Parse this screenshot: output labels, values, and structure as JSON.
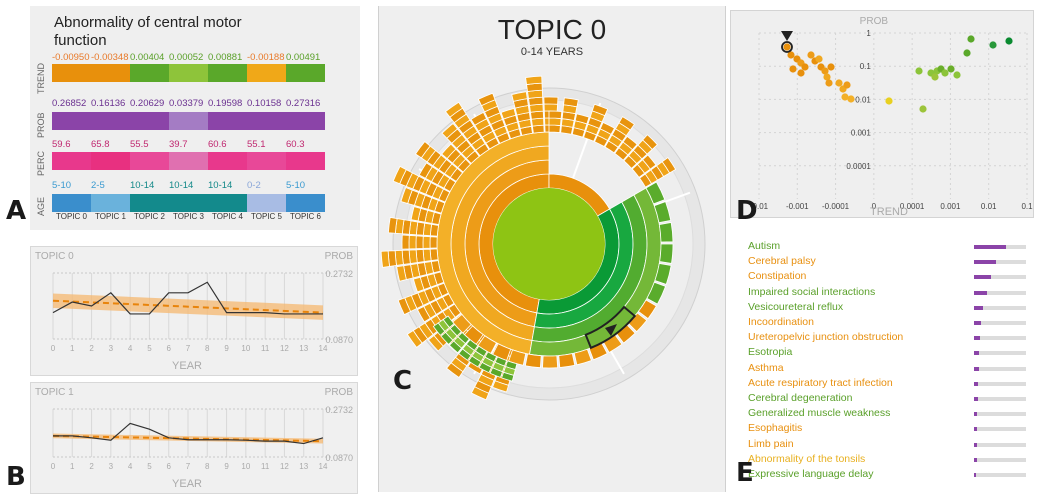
{
  "panel_a": {
    "title": "Abnormality of central motor function",
    "row_labels": [
      "TREND",
      "PROB",
      "PERC",
      "AGE"
    ],
    "trend": {
      "values": [
        "-0.00950",
        "-0.00348",
        "0.00404",
        "0.00052",
        "0.00881",
        "-0.00188",
        "0.00491"
      ],
      "text_colors": [
        "#e87a2a",
        "#e87a2a",
        "#5aa02a",
        "#5aa02a",
        "#5aa02a",
        "#e87a2a",
        "#5aa02a"
      ],
      "cell_colors": [
        "#e8900c",
        "#e8900c",
        "#5aa82a",
        "#8ec43a",
        "#5aa82a",
        "#f0a818",
        "#5aa82a"
      ]
    },
    "prob": {
      "values": [
        "0.26852",
        "0.16136",
        "0.20629",
        "0.03379",
        "0.19598",
        "0.10158",
        "0.27316"
      ],
      "cell_colors": [
        "#8b44a8",
        "#8b44a8",
        "#8b44a8",
        "#a47cc4",
        "#8b44a8",
        "#8b44a8",
        "#8b44a8"
      ]
    },
    "perc": {
      "values": [
        "59.6",
        "65.8",
        "55.5",
        "39.7",
        "60.6",
        "55.1",
        "60.3"
      ],
      "cell_colors": [
        "#e8388c",
        "#e83080",
        "#e84898",
        "#e070b0",
        "#e8388c",
        "#e84898",
        "#e8388c"
      ]
    },
    "age": {
      "values": [
        "5-10",
        "2-5",
        "10-14",
        "10-14",
        "10-14",
        "0-2",
        "5-10"
      ],
      "text_colors": [
        "#3a9ad0",
        "#3a9ad0",
        "#138888",
        "#138888",
        "#138888",
        "#8aa6d8",
        "#3a9ad0"
      ],
      "cell_colors": [
        "#3a8ecc",
        "#6ab2dc",
        "#138a8c",
        "#138a8c",
        "#138a8c",
        "#a8bce4",
        "#3a8ecc"
      ]
    },
    "topics": [
      "TOPIC 0",
      "TOPIC 1",
      "TOPIC 2",
      "TOPIC 3",
      "TOPIC 4",
      "TOPIC 5",
      "TOPIC 6"
    ]
  },
  "letters": {
    "a": "A",
    "b": "B",
    "c": "C",
    "d": "D",
    "e": "E"
  },
  "panel_b": [
    {
      "topic": "TOPIC 0",
      "prob_label": "PROB",
      "y_max": "0.2732",
      "y_min": "0.0870",
      "x_label": "YEAR",
      "x_ticks": [
        "0",
        "1",
        "2",
        "3",
        "4",
        "5",
        "6",
        "7",
        "8",
        "9",
        "10",
        "11",
        "12",
        "13",
        "14"
      ],
      "series": [
        0.4,
        0.56,
        0.5,
        0.7,
        0.38,
        0.38,
        0.7,
        0.7,
        0.86,
        0.4,
        0.4,
        0.4,
        0.38,
        0.38,
        0.38
      ],
      "trend_start": 0.58,
      "trend_end": 0.4,
      "band_width": 0.22
    },
    {
      "topic": "TOPIC 1",
      "prob_label": "PROB",
      "y_max": "0.2732",
      "y_min": "0.0870",
      "x_label": "YEAR",
      "x_ticks": [
        "0",
        "1",
        "2",
        "3",
        "4",
        "5",
        "6",
        "7",
        "8",
        "9",
        "10",
        "11",
        "12",
        "13",
        "14"
      ],
      "series": [
        0.44,
        0.44,
        0.4,
        0.35,
        0.7,
        0.58,
        0.4,
        0.36,
        0.36,
        0.36,
        0.35,
        0.33,
        0.33,
        0.28,
        0.4
      ],
      "trend_start": 0.44,
      "trend_end": 0.33,
      "band_width": 0.1
    }
  ],
  "panel_c": {
    "title": "TOPIC 0",
    "subtitle": "0-14 YEARS"
  },
  "panel_d": {
    "y_label": "PROB",
    "x_label": "TREND",
    "y_ticks": [
      "1",
      "0.1",
      "0.01",
      "0.001",
      "0.0001"
    ],
    "x_ticks": [
      "-0.01",
      "-0.001",
      "-0.0001",
      "0",
      "0.0001",
      "0.001",
      "0.01",
      "0.1"
    ]
  },
  "panel_e": {
    "items": [
      {
        "label": "Autism",
        "color": "#5aa02a",
        "value": 0.62
      },
      {
        "label": "Cerebral palsy",
        "color": "#e89010",
        "value": 0.42
      },
      {
        "label": "Constipation",
        "color": "#e89010",
        "value": 0.32
      },
      {
        "label": "Impaired social interactions",
        "color": "#5aa02a",
        "value": 0.25
      },
      {
        "label": "Vesicoureteral reflux",
        "color": "#5aa02a",
        "value": 0.18
      },
      {
        "label": "Incoordination",
        "color": "#e89010",
        "value": 0.14
      },
      {
        "label": "Ureteropelvic junction obstruction",
        "color": "#e89010",
        "value": 0.11
      },
      {
        "label": "Esotropia",
        "color": "#5aa02a",
        "value": 0.1
      },
      {
        "label": "Asthma",
        "color": "#e89010",
        "value": 0.09
      },
      {
        "label": "Acute respiratory tract infection",
        "color": "#e89010",
        "value": 0.08
      },
      {
        "label": "Cerebral degeneration",
        "color": "#5aa02a",
        "value": 0.07
      },
      {
        "label": "Generalized muscle weakness",
        "color": "#5aa02a",
        "value": 0.06
      },
      {
        "label": "Esophagitis",
        "color": "#e89010",
        "value": 0.06
      },
      {
        "label": "Limb pain",
        "color": "#e89010",
        "value": 0.05
      },
      {
        "label": "Abnormality of the tonsils",
        "color": "#e8b020",
        "value": 0.05
      },
      {
        "label": "Expressive language delay",
        "color": "#5aa02a",
        "value": 0.04
      }
    ]
  }
}
